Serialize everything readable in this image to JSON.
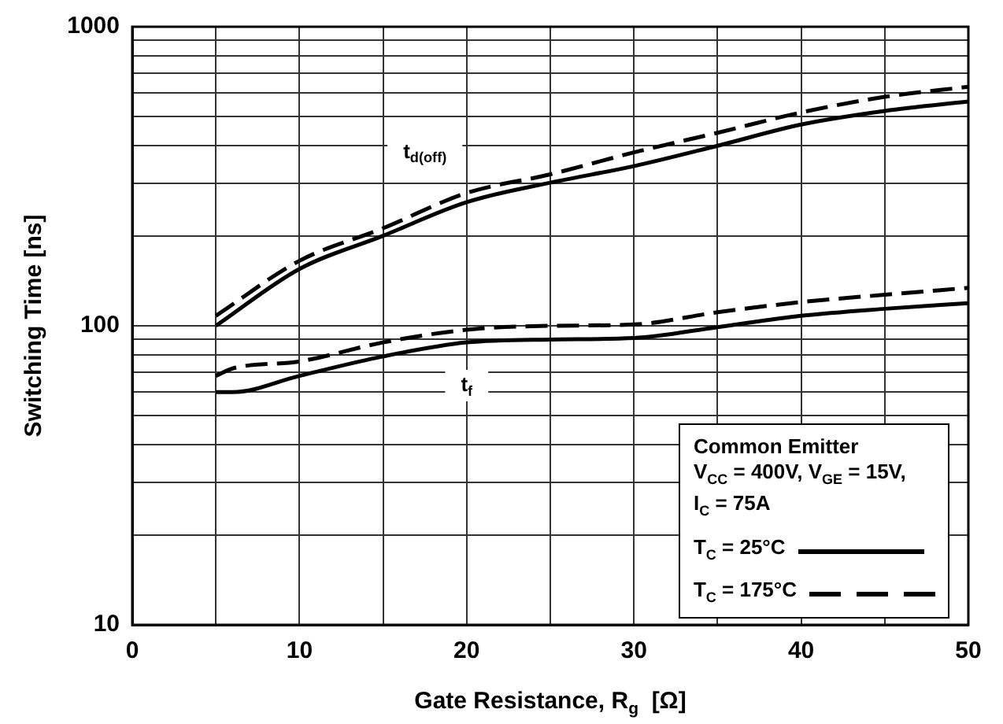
{
  "chart_data": {
    "type": "line",
    "xlabel": "Gate Resistance, R$_{g}$  [Ω]",
    "ylabel": "Switching Time [ns]",
    "log": "y",
    "grid": true,
    "marker": "none",
    "legend": "bottom right",
    "legend_title": "Common Emitter\nV$_{CC}$  = 400V, V$_{GE}$  = 15V,\nI$_{C}$  = 75A",
    "xlim": [
      0,
      50
    ],
    "xticks": [
      0,
      {
        "value": 5,
        "label": null
      },
      10,
      {
        "value": 15,
        "label": null
      },
      20,
      {
        "value": 25,
        "label": null
      },
      30,
      {
        "value": 35,
        "label": null
      },
      40,
      {
        "value": 45,
        "label": null
      },
      50
    ],
    "ylim": [
      10,
      1000
    ],
    "yticks": [
      10,
      {
        "value": 20,
        "label": null
      },
      {
        "value": 30,
        "label": null
      },
      {
        "value": 40,
        "label": null
      },
      {
        "value": 50,
        "label": null
      },
      {
        "value": 60,
        "label": null
      },
      {
        "value": 70,
        "label": null
      },
      {
        "value": 80,
        "label": null
      },
      {
        "value": 90,
        "label": null
      },
      100,
      {
        "value": 200,
        "label": null
      },
      {
        "value": 300,
        "label": null
      },
      {
        "value": 400,
        "label": null
      },
      {
        "value": 500,
        "label": null
      },
      {
        "value": 600,
        "label": null
      },
      {
        "value": 700,
        "label": null
      },
      {
        "value": 800,
        "label": null
      },
      {
        "value": 900,
        "label": null
      },
      1000
    ],
    "x": [
      5,
      10,
      15,
      20,
      25,
      30,
      35,
      40,
      45,
      50
    ],
    "series": [
      {
        "name": "T$_{C}$ = 25°C",
        "color": "#000000",
        "line_style": "solid",
        "values": [
          100,
          155,
          200,
          259,
          301,
          342,
          400,
          471,
          523,
          562
        ]
      },
      {
        "name": "T$_{C}$ = 175°C",
        "color": "#000000",
        "line_style": "dashed",
        "values": [
          108,
          165,
          212,
          278,
          321,
          380,
          442,
          517,
          583,
          630
        ]
      },
      {
        "color": "#000000",
        "line_style": "solid",
        "x": [
          5,
          6,
          10,
          15,
          20,
          25,
          30,
          35,
          40,
          45,
          50
        ],
        "values": [
          60,
          60,
          68,
          79,
          88,
          90,
          91,
          99,
          108,
          114,
          119
        ]
      },
      {
        "color": "#000000",
        "line_style": "dashed",
        "x": [
          5,
          6,
          10,
          15,
          20,
          25,
          30,
          35,
          40,
          45,
          50
        ],
        "values": [
          68,
          72,
          76,
          88,
          97,
          100,
          101,
          111,
          120,
          127,
          134
        ]
      }
    ],
    "annotations": [
      "t$_{d(off)}$",
      "t$_{f}$"
    ]
  }
}
